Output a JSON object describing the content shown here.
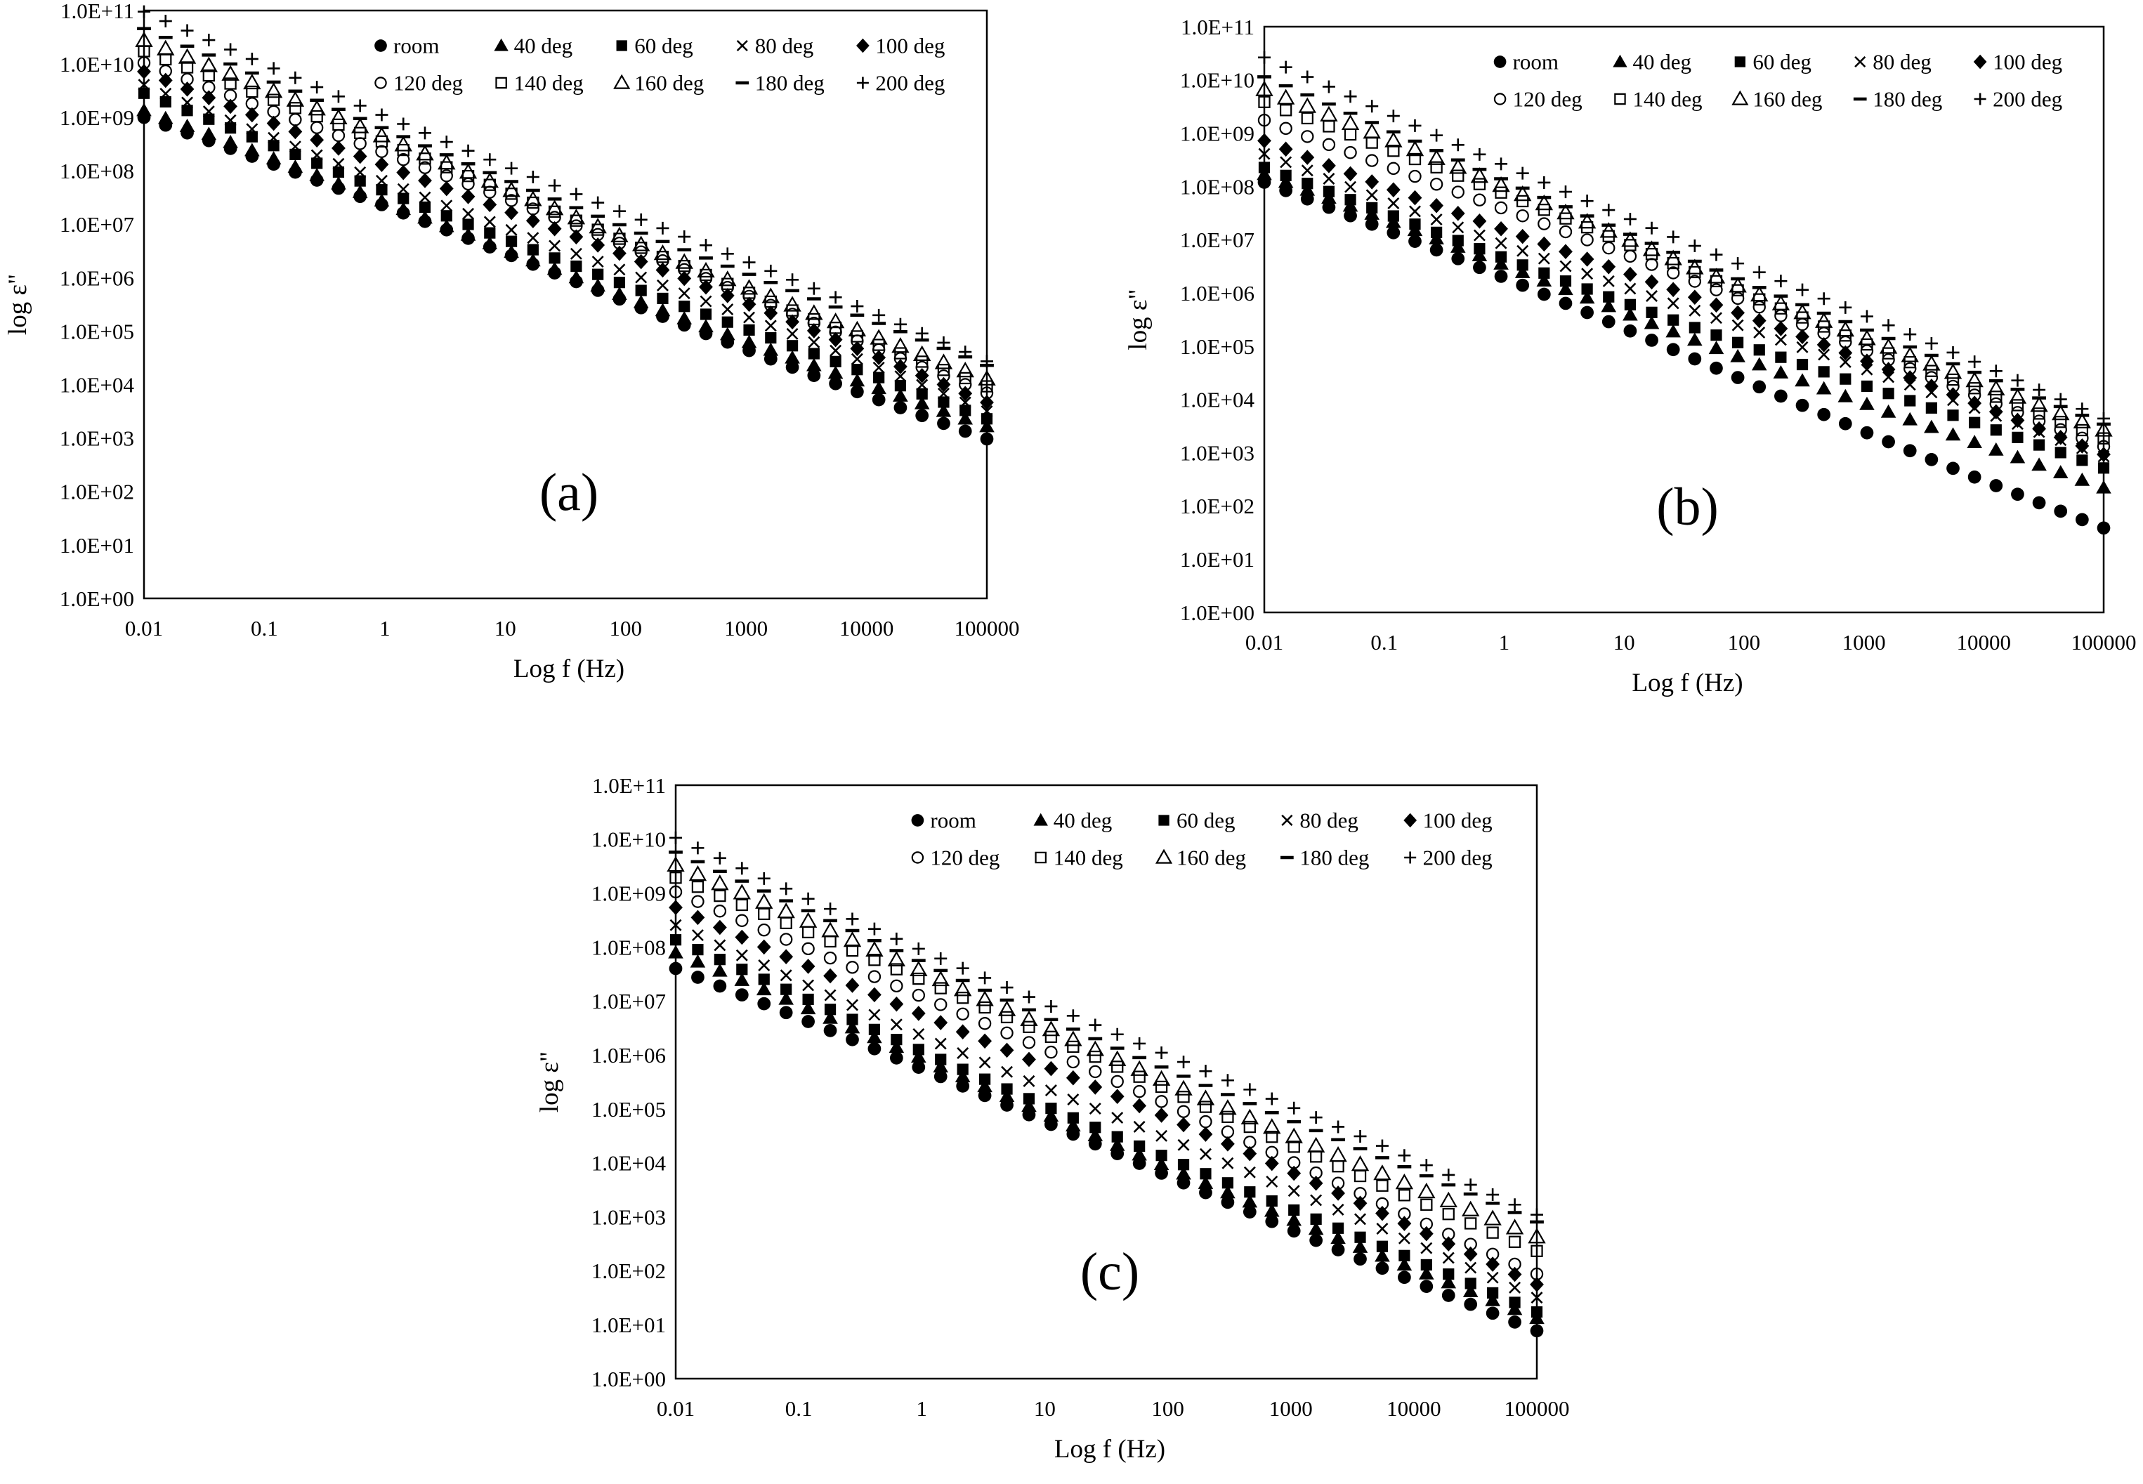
{
  "chart_data": [
    {
      "type": "scatter",
      "panel_label": "(a)",
      "xlabel": "Log f (Hz)",
      "ylabel": "log ε\"",
      "x_scale": "log",
      "y_scale": "log",
      "xlim": [
        0.01,
        100000
      ],
      "ylim": [
        1,
        100000000000
      ],
      "x_ticks": [
        "0.01",
        "0.1",
        "1",
        "10",
        "100",
        "1000",
        "10000",
        "100000"
      ],
      "y_ticks": [
        "1.0E+00",
        "1.0E+01",
        "1.0E+02",
        "1.0E+03",
        "1.0E+04",
        "1.0E+05",
        "1.0E+06",
        "1.0E+07",
        "1.0E+08",
        "1.0E+09",
        "1.0E+10",
        "1.0E+11"
      ],
      "legend_position": "top-right",
      "grid": false,
      "series": [
        {
          "name": "room",
          "marker": "circle-filled",
          "start": 1000000000,
          "end": 1000
        },
        {
          "name": "40 deg",
          "marker": "triangle-filled",
          "start": 1200000000,
          "end": 1500
        },
        {
          "name": "60 deg",
          "marker": "square-filled",
          "start": 2500000000,
          "end": 2000
        },
        {
          "name": "80 deg",
          "marker": "x",
          "start": 4000000000,
          "end": 3000
        },
        {
          "name": "100 deg",
          "marker": "diamond-filled",
          "start": 8000000000,
          "end": 5000
        },
        {
          "name": "120 deg",
          "marker": "circle-open",
          "start": 12000000000,
          "end": 8000
        },
        {
          "name": "140 deg",
          "marker": "square-open",
          "start": 18000000000,
          "end": 10000
        },
        {
          "name": "160 deg",
          "marker": "triangle-open",
          "start": 25000000000,
          "end": 12000
        },
        {
          "name": "180 deg",
          "marker": "dash",
          "start": 40000000000,
          "end": 20000
        },
        {
          "name": "200 deg",
          "marker": "plus",
          "start": 90000000000,
          "end": 25000
        }
      ]
    },
    {
      "type": "scatter",
      "panel_label": "(b)",
      "xlabel": "Log f (Hz)",
      "ylabel": "log ε\"",
      "x_scale": "log",
      "y_scale": "log",
      "xlim": [
        0.01,
        100000
      ],
      "ylim": [
        1,
        100000000000
      ],
      "x_ticks": [
        "0.01",
        "0.1",
        "1",
        "10",
        "100",
        "1000",
        "10000",
        "100000"
      ],
      "y_ticks": [
        "1.0E+00",
        "1.0E+01",
        "1.0E+02",
        "1.0E+03",
        "1.0E+04",
        "1.0E+05",
        "1.0E+06",
        "1.0E+07",
        "1.0E+08",
        "1.0E+09",
        "1.0E+10",
        "1.0E+11"
      ],
      "legend_position": "top-right",
      "grid": false,
      "series": [
        {
          "name": "room",
          "marker": "circle-filled",
          "start": 120000000,
          "end": 40
        },
        {
          "name": "40 deg",
          "marker": "triangle-filled",
          "start": 150000000,
          "end": 200
        },
        {
          "name": "60 deg",
          "marker": "square-filled",
          "start": 200000000,
          "end": 450
        },
        {
          "name": "80 deg",
          "marker": "x",
          "start": 400000000,
          "end": 800
        },
        {
          "name": "100 deg",
          "marker": "diamond-filled",
          "start": 800000000,
          "end": 1000
        },
        {
          "name": "120 deg",
          "marker": "circle-open",
          "start": 2000000000,
          "end": 1500
        },
        {
          "name": "140 deg",
          "marker": "square-open",
          "start": 4000000000,
          "end": 2000
        },
        {
          "name": "160 deg",
          "marker": "triangle-open",
          "start": 6000000000,
          "end": 2500
        },
        {
          "name": "180 deg",
          "marker": "dash",
          "start": 10000000000,
          "end": 3000
        },
        {
          "name": "200 deg",
          "marker": "plus",
          "start": 25000000000,
          "end": 4000
        }
      ]
    },
    {
      "type": "scatter",
      "panel_label": "(c)",
      "xlabel": "Log f (Hz)",
      "ylabel": "log ε\"",
      "x_scale": "log",
      "y_scale": "log",
      "xlim": [
        0.01,
        100000
      ],
      "ylim": [
        1,
        100000000000
      ],
      "x_ticks": [
        "0.01",
        "0.1",
        "1",
        "10",
        "100",
        "1000",
        "10000",
        "100000"
      ],
      "y_ticks": [
        "1.0E+00",
        "1.0E+01",
        "1.0E+02",
        "1.0E+03",
        "1.0E+04",
        "1.0E+05",
        "1.0E+06",
        "1.0E+07",
        "1.0E+08",
        "1.0E+09",
        "1.0E+10",
        "1.0E+11"
      ],
      "legend_position": "top-right",
      "grid": false,
      "series": [
        {
          "name": "room",
          "marker": "circle-filled",
          "start": 40000000,
          "end": 8
        },
        {
          "name": "40 deg",
          "marker": "triangle-filled",
          "start": 70000000,
          "end": 12
        },
        {
          "name": "60 deg",
          "marker": "square-filled",
          "start": 120000000,
          "end": 15
        },
        {
          "name": "80 deg",
          "marker": "x",
          "start": 250000000,
          "end": 30
        },
        {
          "name": "100 deg",
          "marker": "diamond-filled",
          "start": 600000000,
          "end": 60
        },
        {
          "name": "120 deg",
          "marker": "circle-open",
          "start": 1200000000,
          "end": 100
        },
        {
          "name": "140 deg",
          "marker": "square-open",
          "start": 2000000000,
          "end": 250
        },
        {
          "name": "160 deg",
          "marker": "triangle-open",
          "start": 3000000000,
          "end": 400
        },
        {
          "name": "180 deg",
          "marker": "dash",
          "start": 5000000000,
          "end": 700
        },
        {
          "name": "200 deg",
          "marker": "plus",
          "start": 10000000000,
          "end": 1000
        }
      ]
    }
  ]
}
